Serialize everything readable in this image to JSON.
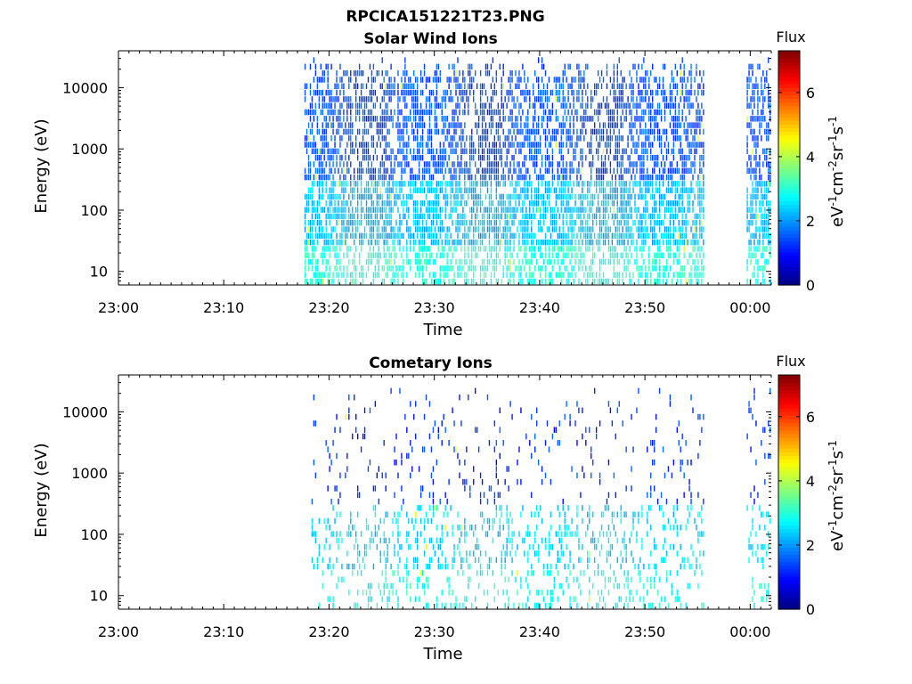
{
  "figure": {
    "title": "RPCICA151221T23.PNG"
  },
  "chart_data": [
    {
      "type": "heatmap",
      "title": "Solar Wind Ions",
      "xlabel": "Time",
      "ylabel": "Energy (eV)",
      "y_scale": "log",
      "xlim": [
        "23:00",
        "00:02"
      ],
      "ylim": [
        6,
        40000
      ],
      "x_ticks": [
        "23:00",
        "23:10",
        "23:20",
        "23:30",
        "23:40",
        "23:50",
        "00:00"
      ],
      "y_ticks": [
        "10",
        "100",
        "1000",
        "10000"
      ],
      "colorbar": {
        "label": "Flux",
        "units": "eV-1cm-2sr-1s-1",
        "range": [
          0,
          7.3
        ],
        "ticks": [
          "0",
          "2",
          "4",
          "6"
        ],
        "colormap": "jet"
      },
      "data_intervals": [
        [
          "23:17:40",
          "23:55:40"
        ],
        [
          "23:59:40",
          "00:02:00"
        ]
      ],
      "energy_cutoff_ev": 13000,
      "typical_flux": {
        "above_1000_ev": 1.5,
        "near_100_ev": 2.3,
        "near_10_ev": 3.0
      },
      "max_flux": 4.3
    },
    {
      "type": "heatmap",
      "title": "Cometary Ions",
      "xlabel": "Time",
      "ylabel": "Energy (eV)",
      "y_scale": "log",
      "xlim": [
        "23:00",
        "00:02"
      ],
      "ylim": [
        6,
        40000
      ],
      "x_ticks": [
        "23:00",
        "23:10",
        "23:20",
        "23:30",
        "23:40",
        "23:50",
        "00:00"
      ],
      "y_ticks": [
        "10",
        "100",
        "1000",
        "10000"
      ],
      "colorbar": {
        "label": "Flux",
        "units": "eV-1cm-2sr-1s-1",
        "range": [
          0,
          7.3
        ],
        "ticks": [
          "0",
          "2",
          "4",
          "6"
        ],
        "colormap": "jet"
      },
      "data_intervals": [
        [
          "23:18:20",
          "23:55:40"
        ],
        [
          "23:59:40",
          "00:02:00"
        ]
      ],
      "energy_cutoff_ev": 12000,
      "typical_flux": {
        "above_1000_ev": 1.3,
        "near_100_ev": 2.5,
        "near_10_ev": 2.9
      },
      "max_flux": 4.4
    }
  ]
}
